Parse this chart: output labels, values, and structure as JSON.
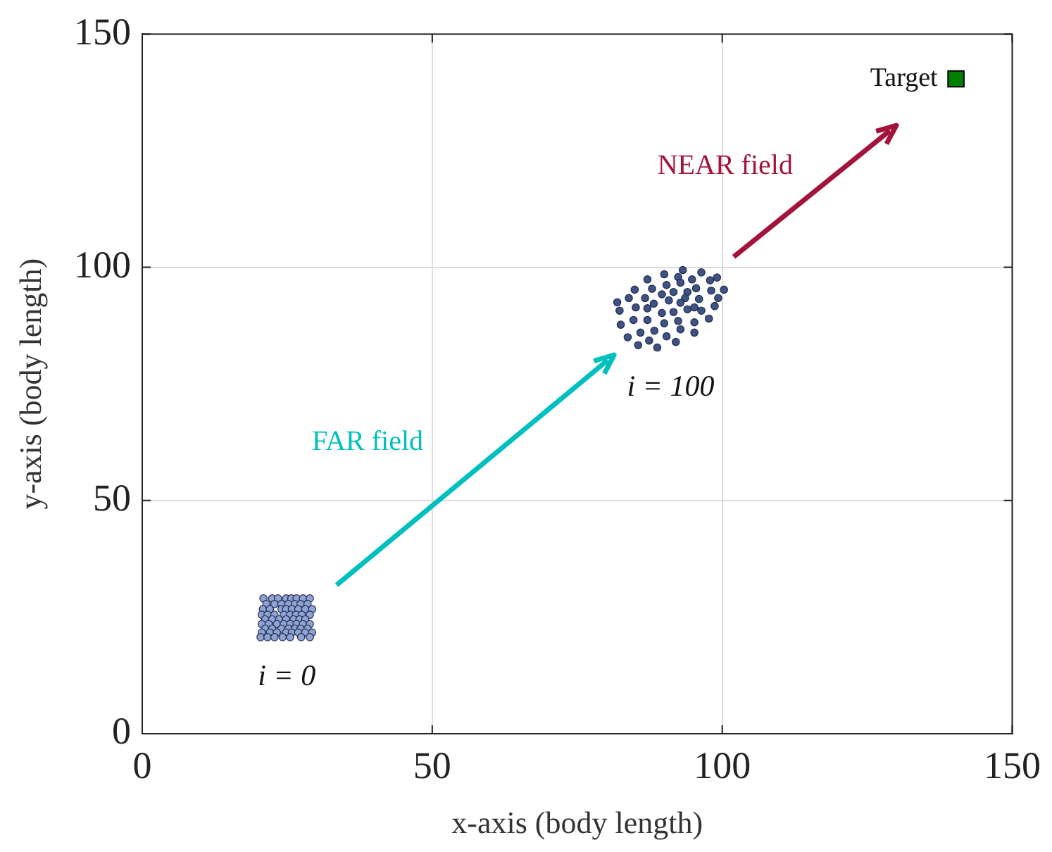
{
  "chart_data": {
    "type": "scatter",
    "xlabel": "x-axis (body length)",
    "ylabel": "y-axis (body length)",
    "xlim": [
      0,
      150
    ],
    "ylim": [
      0,
      150
    ],
    "xticks": [
      0,
      50,
      100,
      150
    ],
    "yticks": [
      0,
      50,
      100,
      150
    ],
    "grid": true,
    "marker": "circle",
    "annotations": [
      "FAR field",
      "NEAR field"
    ],
    "series": [
      {
        "name": "i = 0",
        "color": "#8ea3d4",
        "x": [
          20.9,
          22.4,
          23.4,
          24.8,
          25.7,
          26.6,
          27.7,
          28.9,
          21.4,
          22.8,
          24.0,
          25.2,
          26.3,
          27.3,
          28.5,
          20.8,
          22.0,
          24.0,
          24.8,
          25.8,
          26.9,
          28.1,
          29.3,
          20.6,
          21.6,
          22.8,
          24.4,
          25.5,
          26.5,
          27.5,
          28.9,
          21.2,
          22.4,
          23.6,
          24.8,
          26.1,
          27.1,
          28.1,
          20.6,
          21.8,
          23.2,
          24.4,
          25.5,
          26.6,
          27.7,
          28.9,
          21.2,
          22.4,
          24.0,
          25.2,
          26.3,
          27.3,
          28.5,
          20.6,
          22.0,
          23.2,
          24.8,
          25.8,
          26.9,
          28.1,
          29.3,
          20.4,
          21.6,
          22.8,
          24.2,
          25.5,
          27.4,
          28.9
        ],
        "values": [
          29.0,
          29.0,
          29.0,
          29.0,
          29.0,
          29.0,
          29.0,
          29.0,
          27.8,
          27.8,
          27.8,
          27.8,
          27.8,
          27.8,
          27.8,
          26.7,
          26.7,
          26.7,
          26.7,
          26.7,
          26.7,
          26.7,
          26.7,
          25.5,
          25.5,
          25.5,
          25.5,
          25.5,
          25.5,
          25.5,
          25.5,
          24.5,
          24.5,
          24.5,
          24.5,
          24.5,
          24.5,
          24.5,
          23.5,
          23.5,
          23.5,
          23.5,
          23.5,
          23.5,
          23.5,
          23.5,
          22.5,
          22.5,
          22.5,
          22.5,
          22.5,
          22.5,
          22.5,
          21.7,
          21.7,
          21.7,
          21.7,
          21.7,
          21.7,
          21.7,
          21.7,
          20.7,
          20.7,
          20.7,
          20.7,
          20.7,
          20.7,
          20.7
        ]
      },
      {
        "name": "i = 100",
        "color": "#3e5283",
        "x": [
          93.2,
          96.4,
          90.0,
          92.4,
          94.8,
          97.9,
          99.1,
          87.1,
          90.4,
          92.8,
          95.5,
          98.1,
          100.3,
          84.9,
          87.9,
          89.6,
          91.6,
          94.0,
          93.6,
          96.0,
          99.3,
          83.9,
          86.7,
          88.2,
          90.8,
          92.8,
          95.2,
          98.7,
          81.9,
          82.3,
          85.1,
          87.1,
          89.6,
          91.6,
          94.0,
          96.4,
          97.7,
          82.5,
          84.7,
          87.1,
          90.0,
          92.4,
          95.2,
          83.7,
          85.9,
          88.3,
          90.4,
          92.8,
          95.2,
          85.5,
          87.4,
          88.8,
          92.0
        ],
        "values": [
          99.4,
          98.9,
          98.5,
          97.9,
          97.4,
          97.2,
          97.8,
          97.4,
          96.2,
          96.7,
          95.5,
          95.0,
          95.2,
          95.2,
          95.4,
          94.2,
          94.7,
          94.7,
          93.4,
          93.2,
          93.4,
          93.4,
          93.4,
          92.2,
          92.9,
          92.4,
          91.4,
          91.7,
          92.5,
          90.7,
          91.4,
          91.2,
          90.2,
          90.4,
          91.0,
          90.7,
          89.0,
          87.7,
          88.7,
          88.7,
          88.0,
          88.5,
          88.2,
          85.0,
          86.0,
          86.4,
          85.2,
          86.7,
          86.0,
          83.3,
          84.3,
          82.8,
          84.0
        ]
      },
      {
        "name": "Target",
        "color": "#008000",
        "marker": "square",
        "x": [
          140.3
        ],
        "values": [
          140.4
        ]
      }
    ]
  }
}
